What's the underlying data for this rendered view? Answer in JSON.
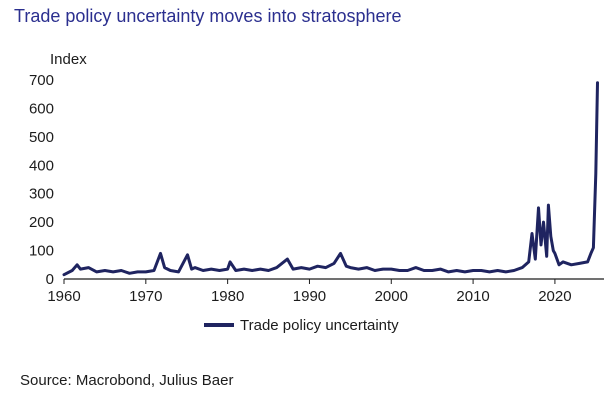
{
  "title": "Trade policy uncertainty moves into stratosphere",
  "source": "Source: Macrobond, Julius Baer",
  "colors": {
    "title": "#2b2f8f",
    "series": "#1f2460",
    "axis": "#1c1c1c"
  },
  "chart_data": {
    "type": "line",
    "ylabel": "Index",
    "xlabel": "",
    "xlim": [
      1960,
      2026
    ],
    "ylim": [
      0,
      700
    ],
    "x_ticks": [
      "1960",
      "1970",
      "1980",
      "1990",
      "2000",
      "2010",
      "2020"
    ],
    "y_ticks": [
      "0",
      "100",
      "200",
      "300",
      "400",
      "500",
      "600",
      "700"
    ],
    "legend_position": "bottom-center",
    "grid": false,
    "series": [
      {
        "name": "Trade policy uncertainty",
        "color": "#1f2460",
        "x": [
          1960,
          1961,
          1961.6,
          1962,
          1963,
          1964,
          1965,
          1966,
          1967,
          1968,
          1969,
          1970,
          1971,
          1971.8,
          1972.3,
          1973,
          1974,
          1975.1,
          1975.6,
          1976,
          1977,
          1978,
          1979,
          1980,
          1980.3,
          1981,
          1982,
          1983,
          1984,
          1985,
          1986,
          1987.3,
          1988,
          1989,
          1990,
          1991,
          1992,
          1993,
          1993.8,
          1994.5,
          1995,
          1996,
          1997,
          1998,
          1999,
          2000,
          2001,
          2002,
          2003,
          2004,
          2005,
          2006,
          2007,
          2008,
          2009,
          2010,
          2011,
          2012,
          2013,
          2014,
          2015,
          2016,
          2016.8,
          2017.2,
          2017.6,
          2018,
          2018.3,
          2018.6,
          2019,
          2019.2,
          2019.5,
          2019.8,
          2020,
          2020.5,
          2021,
          2022,
          2023,
          2024,
          2024.4,
          2024.7,
          2025,
          2025.2
        ],
        "values": [
          15,
          30,
          50,
          35,
          40,
          25,
          30,
          25,
          30,
          20,
          25,
          25,
          30,
          90,
          40,
          30,
          25,
          85,
          35,
          40,
          30,
          35,
          30,
          35,
          60,
          30,
          35,
          30,
          35,
          30,
          40,
          70,
          35,
          40,
          35,
          45,
          40,
          55,
          90,
          45,
          40,
          35,
          40,
          30,
          35,
          35,
          30,
          30,
          40,
          30,
          30,
          35,
          25,
          30,
          25,
          30,
          30,
          25,
          30,
          25,
          30,
          40,
          60,
          160,
          70,
          250,
          120,
          200,
          80,
          260,
          150,
          100,
          90,
          50,
          60,
          50,
          55,
          60,
          90,
          110,
          370,
          690
        ]
      }
    ]
  }
}
